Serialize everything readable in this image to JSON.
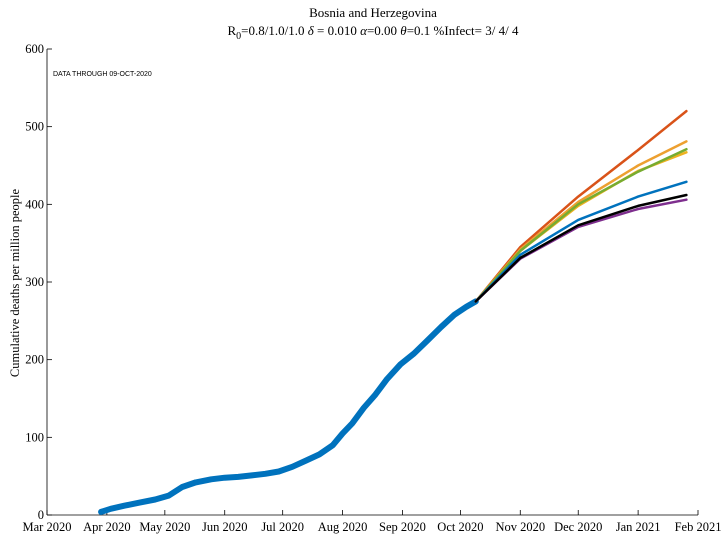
{
  "chart_data": {
    "type": "line",
    "title": "Bosnia and Herzegovina",
    "subtitle_parts": {
      "r0_label": "R",
      "r0_sub": "0",
      "r0_values": "=0.8/1.0/1.0",
      "delta": "δ",
      "delta_value": " = 0.010",
      "alpha": "α",
      "alpha_value": "=0.00",
      "theta": "θ",
      "theta_value": "=0.1",
      "infect": "%Infect= 3/ 4/ 4"
    },
    "ylabel": "Cumulative deaths per million people",
    "xlabel": "",
    "annotation": "DATA THROUGH 09-OCT-2020",
    "ylim": [
      0,
      600
    ],
    "yticks": [
      0,
      100,
      200,
      300,
      400,
      500,
      600
    ],
    "xlim": [
      "2020-03-01",
      "2021-02-01"
    ],
    "xticks": [
      {
        "date": "2020-03-01",
        "label": "Mar 2020"
      },
      {
        "date": "2020-04-01",
        "label": "Apr 2020"
      },
      {
        "date": "2020-05-01",
        "label": "May 2020"
      },
      {
        "date": "2020-06-01",
        "label": "Jun 2020"
      },
      {
        "date": "2020-07-01",
        "label": "Jul 2020"
      },
      {
        "date": "2020-08-01",
        "label": "Aug 2020"
      },
      {
        "date": "2020-09-01",
        "label": "Sep 2020"
      },
      {
        "date": "2020-10-01",
        "label": "Oct 2020"
      },
      {
        "date": "2020-11-01",
        "label": "Nov 2020"
      },
      {
        "date": "2020-12-01",
        "label": "Dec 2020"
      },
      {
        "date": "2021-01-01",
        "label": "Jan 2021"
      },
      {
        "date": "2021-02-01",
        "label": "Feb 2021"
      }
    ],
    "grid": false,
    "series": [
      {
        "color": "#0072BD",
        "thick": true,
        "x": [
          "2020-03-29",
          "2020-04-03",
          "2020-04-10",
          "2020-04-18",
          "2020-04-26",
          "2020-05-03",
          "2020-05-10",
          "2020-05-17",
          "2020-05-25",
          "2020-06-01",
          "2020-06-08",
          "2020-06-15",
          "2020-06-22",
          "2020-06-29",
          "2020-07-06",
          "2020-07-13",
          "2020-07-20",
          "2020-07-27",
          "2020-08-01",
          "2020-08-06",
          "2020-08-12",
          "2020-08-18",
          "2020-08-24",
          "2020-08-31",
          "2020-09-07",
          "2020-09-14",
          "2020-09-21",
          "2020-09-28",
          "2020-10-04",
          "2020-10-09"
        ],
        "y": [
          4,
          8,
          12,
          16,
          20,
          25,
          36,
          42,
          46,
          48,
          49,
          51,
          53,
          56,
          62,
          70,
          78,
          90,
          105,
          118,
          138,
          155,
          175,
          194,
          208,
          225,
          242,
          258,
          268,
          275
        ]
      },
      {
        "color": "#D95319",
        "x": [
          "2020-10-09",
          "2020-11-01",
          "2020-12-01",
          "2021-01-01",
          "2021-01-26"
        ],
        "y": [
          275,
          345,
          410,
          470,
          520
        ]
      },
      {
        "color": "#EDB120",
        "x": [
          "2020-10-09",
          "2020-11-01",
          "2020-12-01",
          "2021-01-01",
          "2021-01-26"
        ],
        "y": [
          275,
          340,
          398,
          443,
          467
        ]
      },
      {
        "color": "#EDA030",
        "x": [
          "2020-10-09",
          "2020-11-01",
          "2020-12-01",
          "2021-01-01",
          "2021-01-26"
        ],
        "y": [
          275,
          342,
          403,
          450,
          481
        ]
      },
      {
        "color": "#77AC30",
        "x": [
          "2020-10-09",
          "2020-11-01",
          "2020-12-01",
          "2021-01-01",
          "2021-01-26"
        ],
        "y": [
          275,
          340,
          400,
          442,
          471
        ]
      },
      {
        "color": "#0072BD",
        "x": [
          "2020-10-09",
          "2020-11-01",
          "2020-12-01",
          "2021-01-01",
          "2021-01-26"
        ],
        "y": [
          275,
          335,
          380,
          410,
          429
        ]
      },
      {
        "color": "#7E2F8E",
        "x": [
          "2020-10-09",
          "2020-11-01",
          "2020-12-01",
          "2021-01-01",
          "2021-01-26"
        ],
        "y": [
          275,
          330,
          371,
          394,
          406
        ]
      },
      {
        "color": "#000000",
        "x": [
          "2020-10-09",
          "2020-11-01",
          "2020-12-01",
          "2021-01-01",
          "2021-01-26"
        ],
        "y": [
          275,
          331,
          373,
          398,
          412
        ]
      }
    ]
  }
}
